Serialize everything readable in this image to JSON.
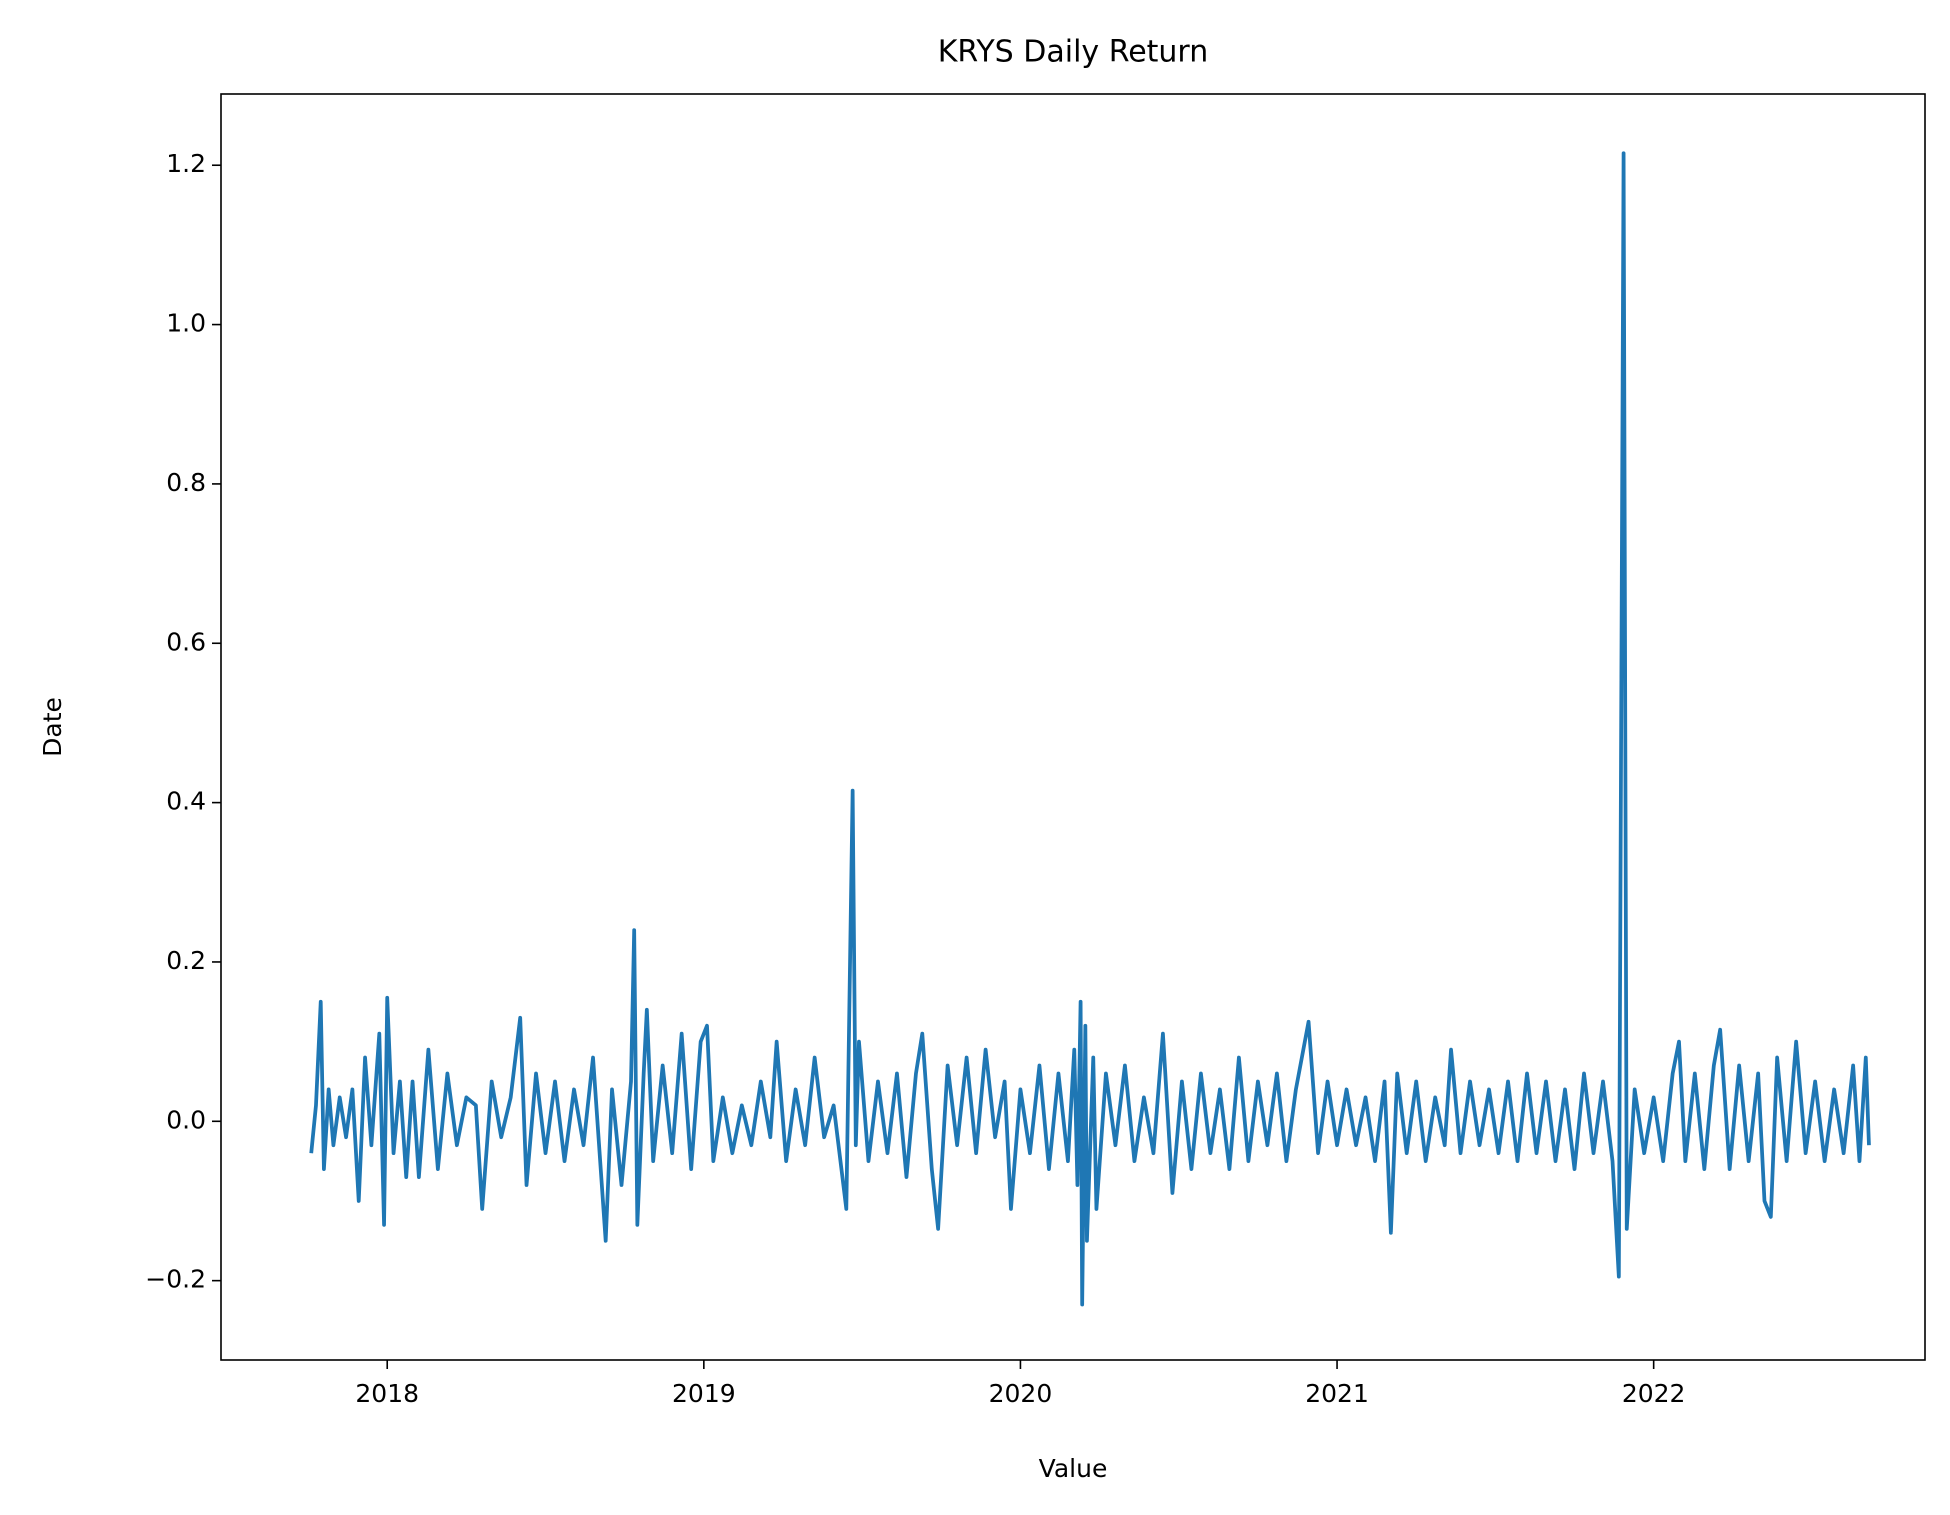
{
  "chart_data": {
    "type": "line",
    "title": "KRYS Daily Return",
    "xlabel": "Value",
    "ylabel": "Date",
    "xlim": [
      2017.475,
      2022.857
    ],
    "ylim": [
      -0.2996,
      1.2894
    ],
    "xticks": [
      2018,
      2019,
      2020,
      2021,
      2022
    ],
    "yticks": [
      {
        "value": -0.2,
        "label": "−0.2"
      },
      {
        "value": 0,
        "label": "0.0"
      },
      0.2,
      0.4,
      0.6,
      0.8,
      {
        "value": 1,
        "label": "1.0"
      },
      1.2
    ],
    "grid": false,
    "series": [
      {
        "color": "#1f77b4",
        "x": [
          2017.76,
          2017.775,
          2017.79,
          2017.8,
          2017.815,
          2017.83,
          2017.85,
          2017.87,
          2017.89,
          2017.91,
          2017.93,
          2017.95,
          2017.975,
          2017.99,
          2018.0,
          2018.02,
          2018.04,
          2018.06,
          2018.08,
          2018.1,
          2018.13,
          2018.16,
          2018.19,
          2018.22,
          2018.25,
          2018.28,
          2018.3,
          2018.33,
          2018.36,
          2018.39,
          2018.42,
          2018.44,
          2018.47,
          2018.5,
          2018.53,
          2018.56,
          2018.59,
          2018.62,
          2018.65,
          2018.69,
          2018.71,
          2018.74,
          2018.77,
          2018.78,
          2018.79,
          2018.81,
          2018.82,
          2018.84,
          2018.87,
          2018.9,
          2018.93,
          2018.96,
          2018.99,
          2019.01,
          2019.03,
          2019.06,
          2019.09,
          2019.12,
          2019.15,
          2019.18,
          2019.21,
          2019.23,
          2019.26,
          2019.29,
          2019.32,
          2019.35,
          2019.38,
          2019.41,
          2019.45,
          2019.47,
          2019.48,
          2019.49,
          2019.52,
          2019.55,
          2019.58,
          2019.61,
          2019.64,
          2019.67,
          2019.69,
          2019.72,
          2019.74,
          2019.77,
          2019.8,
          2019.83,
          2019.86,
          2019.89,
          2019.92,
          2019.95,
          2019.97,
          2020.0,
          2020.03,
          2020.06,
          2020.09,
          2020.12,
          2020.15,
          2020.17,
          2020.18,
          2020.19,
          2020.195,
          2020.205,
          2020.21,
          2020.23,
          2020.24,
          2020.27,
          2020.3,
          2020.33,
          2020.36,
          2020.39,
          2020.42,
          2020.45,
          2020.48,
          2020.51,
          2020.54,
          2020.57,
          2020.6,
          2020.63,
          2020.66,
          2020.69,
          2020.72,
          2020.75,
          2020.78,
          2020.81,
          2020.84,
          2020.87,
          2020.91,
          2020.94,
          2020.97,
          2021.0,
          2021.03,
          2021.06,
          2021.09,
          2021.12,
          2021.15,
          2021.17,
          2021.19,
          2021.22,
          2021.25,
          2021.28,
          2021.31,
          2021.34,
          2021.36,
          2021.39,
          2021.42,
          2021.45,
          2021.48,
          2021.51,
          2021.54,
          2021.57,
          2021.6,
          2021.63,
          2021.66,
          2021.69,
          2021.72,
          2021.75,
          2021.78,
          2021.81,
          2021.84,
          2021.87,
          2021.89,
          2021.905,
          2021.915,
          2021.94,
          2021.97,
          2022.0,
          2022.03,
          2022.06,
          2022.08,
          2022.1,
          2022.13,
          2022.16,
          2022.19,
          2022.21,
          2022.24,
          2022.27,
          2022.3,
          2022.33,
          2022.35,
          2022.37,
          2022.39,
          2022.42,
          2022.45,
          2022.48,
          2022.51,
          2022.54,
          2022.57,
          2022.6,
          2022.63,
          2022.65,
          2022.67,
          2022.68
        ],
        "values": [
          -0.04,
          0.02,
          0.15,
          -0.06,
          0.04,
          -0.03,
          0.03,
          -0.02,
          0.04,
          -0.1,
          0.08,
          -0.03,
          0.11,
          -0.13,
          0.155,
          -0.04,
          0.05,
          -0.07,
          0.05,
          -0.07,
          0.09,
          -0.06,
          0.06,
          -0.03,
          0.03,
          0.02,
          -0.11,
          0.05,
          -0.02,
          0.03,
          0.13,
          -0.08,
          0.06,
          -0.04,
          0.05,
          -0.05,
          0.04,
          -0.03,
          0.08,
          -0.15,
          0.04,
          -0.08,
          0.05,
          0.24,
          -0.13,
          0.06,
          0.14,
          -0.05,
          0.07,
          -0.04,
          0.11,
          -0.06,
          0.1,
          0.12,
          -0.05,
          0.03,
          -0.04,
          0.02,
          -0.03,
          0.05,
          -0.02,
          0.1,
          -0.05,
          0.04,
          -0.03,
          0.08,
          -0.02,
          0.02,
          -0.11,
          0.415,
          -0.03,
          0.1,
          -0.05,
          0.05,
          -0.04,
          0.06,
          -0.07,
          0.06,
          0.11,
          -0.06,
          -0.135,
          0.07,
          -0.03,
          0.08,
          -0.04,
          0.09,
          -0.02,
          0.05,
          -0.11,
          0.04,
          -0.04,
          0.07,
          -0.06,
          0.06,
          -0.05,
          0.09,
          -0.08,
          0.15,
          -0.23,
          0.12,
          -0.15,
          0.08,
          -0.11,
          0.06,
          -0.03,
          0.07,
          -0.05,
          0.03,
          -0.04,
          0.11,
          -0.09,
          0.05,
          -0.06,
          0.06,
          -0.04,
          0.04,
          -0.06,
          0.08,
          -0.05,
          0.05,
          -0.03,
          0.06,
          -0.05,
          0.04,
          0.125,
          -0.04,
          0.05,
          -0.03,
          0.04,
          -0.03,
          0.03,
          -0.05,
          0.05,
          -0.14,
          0.06,
          -0.04,
          0.05,
          -0.05,
          0.03,
          -0.03,
          0.09,
          -0.04,
          0.05,
          -0.03,
          0.04,
          -0.04,
          0.05,
          -0.05,
          0.06,
          -0.04,
          0.05,
          -0.05,
          0.04,
          -0.06,
          0.06,
          -0.04,
          0.05,
          -0.05,
          -0.195,
          1.215,
          -0.135,
          0.04,
          -0.04,
          0.03,
          -0.05,
          0.06,
          0.1,
          -0.05,
          0.06,
          -0.06,
          0.07,
          0.115,
          -0.06,
          0.07,
          -0.05,
          0.06,
          -0.1,
          -0.12,
          0.08,
          -0.05,
          0.1,
          -0.04,
          0.05,
          -0.05,
          0.04,
          -0.04,
          0.07,
          -0.05,
          0.08,
          -0.03
        ]
      }
    ]
  }
}
